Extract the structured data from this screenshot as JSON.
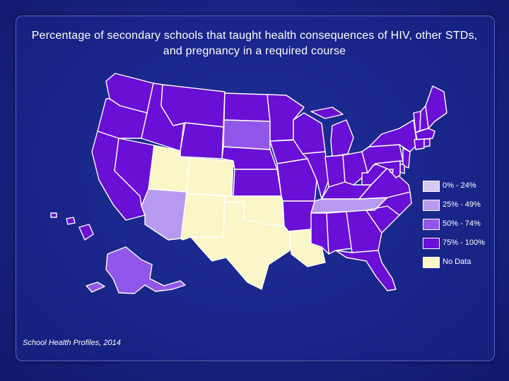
{
  "title": "Percentage of secondary schools that taught health consequences of HIV, other STDs, and pregnancy in a required course",
  "source": "School Health Profiles, 2014",
  "legend": [
    {
      "label": "0% - 24%",
      "color": "#d6c8f4"
    },
    {
      "label": "25% - 49%",
      "color": "#b79af0"
    },
    {
      "label": "50% - 74%",
      "color": "#9157ea"
    },
    {
      "label": "75% - 100%",
      "color": "#6a0fd6"
    },
    {
      "label": "No Data",
      "color": "#fbf6c8"
    }
  ],
  "colors": {
    "background": "#1a2588",
    "border": "#ffffff"
  },
  "regions": [
    {
      "id": "WA",
      "category": "75% - 100%"
    },
    {
      "id": "OR",
      "category": "75% - 100%"
    },
    {
      "id": "CA",
      "category": "75% - 100%"
    },
    {
      "id": "NV",
      "category": "75% - 100%"
    },
    {
      "id": "ID",
      "category": "75% - 100%"
    },
    {
      "id": "MT",
      "category": "75% - 100%"
    },
    {
      "id": "WY",
      "category": "75% - 100%"
    },
    {
      "id": "UT",
      "category": "No Data"
    },
    {
      "id": "CO",
      "category": "No Data"
    },
    {
      "id": "AZ",
      "category": "25% - 49%"
    },
    {
      "id": "NM",
      "category": "No Data"
    },
    {
      "id": "ND",
      "category": "75% - 100%"
    },
    {
      "id": "SD",
      "category": "50% - 74%"
    },
    {
      "id": "NE",
      "category": "75% - 100%"
    },
    {
      "id": "KS",
      "category": "75% - 100%"
    },
    {
      "id": "OK",
      "category": "No Data"
    },
    {
      "id": "TX",
      "category": "No Data"
    },
    {
      "id": "MN",
      "category": "75% - 100%"
    },
    {
      "id": "IA",
      "category": "75% - 100%"
    },
    {
      "id": "MO",
      "category": "75% - 100%"
    },
    {
      "id": "AR",
      "category": "75% - 100%"
    },
    {
      "id": "LA",
      "category": "No Data"
    },
    {
      "id": "WI",
      "category": "75% - 100%"
    },
    {
      "id": "IL",
      "category": "75% - 100%"
    },
    {
      "id": "MI",
      "category": "75% - 100%"
    },
    {
      "id": "IN",
      "category": "75% - 100%"
    },
    {
      "id": "OH",
      "category": "75% - 100%"
    },
    {
      "id": "KY",
      "category": "75% - 100%"
    },
    {
      "id": "TN",
      "category": "25% - 49%"
    },
    {
      "id": "MS",
      "category": "75% - 100%"
    },
    {
      "id": "AL",
      "category": "75% - 100%"
    },
    {
      "id": "GA",
      "category": "75% - 100%"
    },
    {
      "id": "FL",
      "category": "75% - 100%"
    },
    {
      "id": "SC",
      "category": "75% - 100%"
    },
    {
      "id": "NC",
      "category": "75% - 100%"
    },
    {
      "id": "VA",
      "category": "75% - 100%"
    },
    {
      "id": "WV",
      "category": "75% - 100%"
    },
    {
      "id": "PA",
      "category": "75% - 100%"
    },
    {
      "id": "NY",
      "category": "75% - 100%"
    },
    {
      "id": "VT",
      "category": "75% - 100%"
    },
    {
      "id": "NH",
      "category": "75% - 100%"
    },
    {
      "id": "ME",
      "category": "75% - 100%"
    },
    {
      "id": "MA",
      "category": "75% - 100%"
    },
    {
      "id": "CT",
      "category": "75% - 100%"
    },
    {
      "id": "RI",
      "category": "75% - 100%"
    },
    {
      "id": "NJ",
      "category": "75% - 100%"
    },
    {
      "id": "DE",
      "category": "75% - 100%"
    },
    {
      "id": "MD",
      "category": "75% - 100%"
    },
    {
      "id": "DC",
      "category": "75% - 100%"
    },
    {
      "id": "AK",
      "category": "50% - 74%"
    },
    {
      "id": "HI",
      "category": "75% - 100%"
    }
  ]
}
